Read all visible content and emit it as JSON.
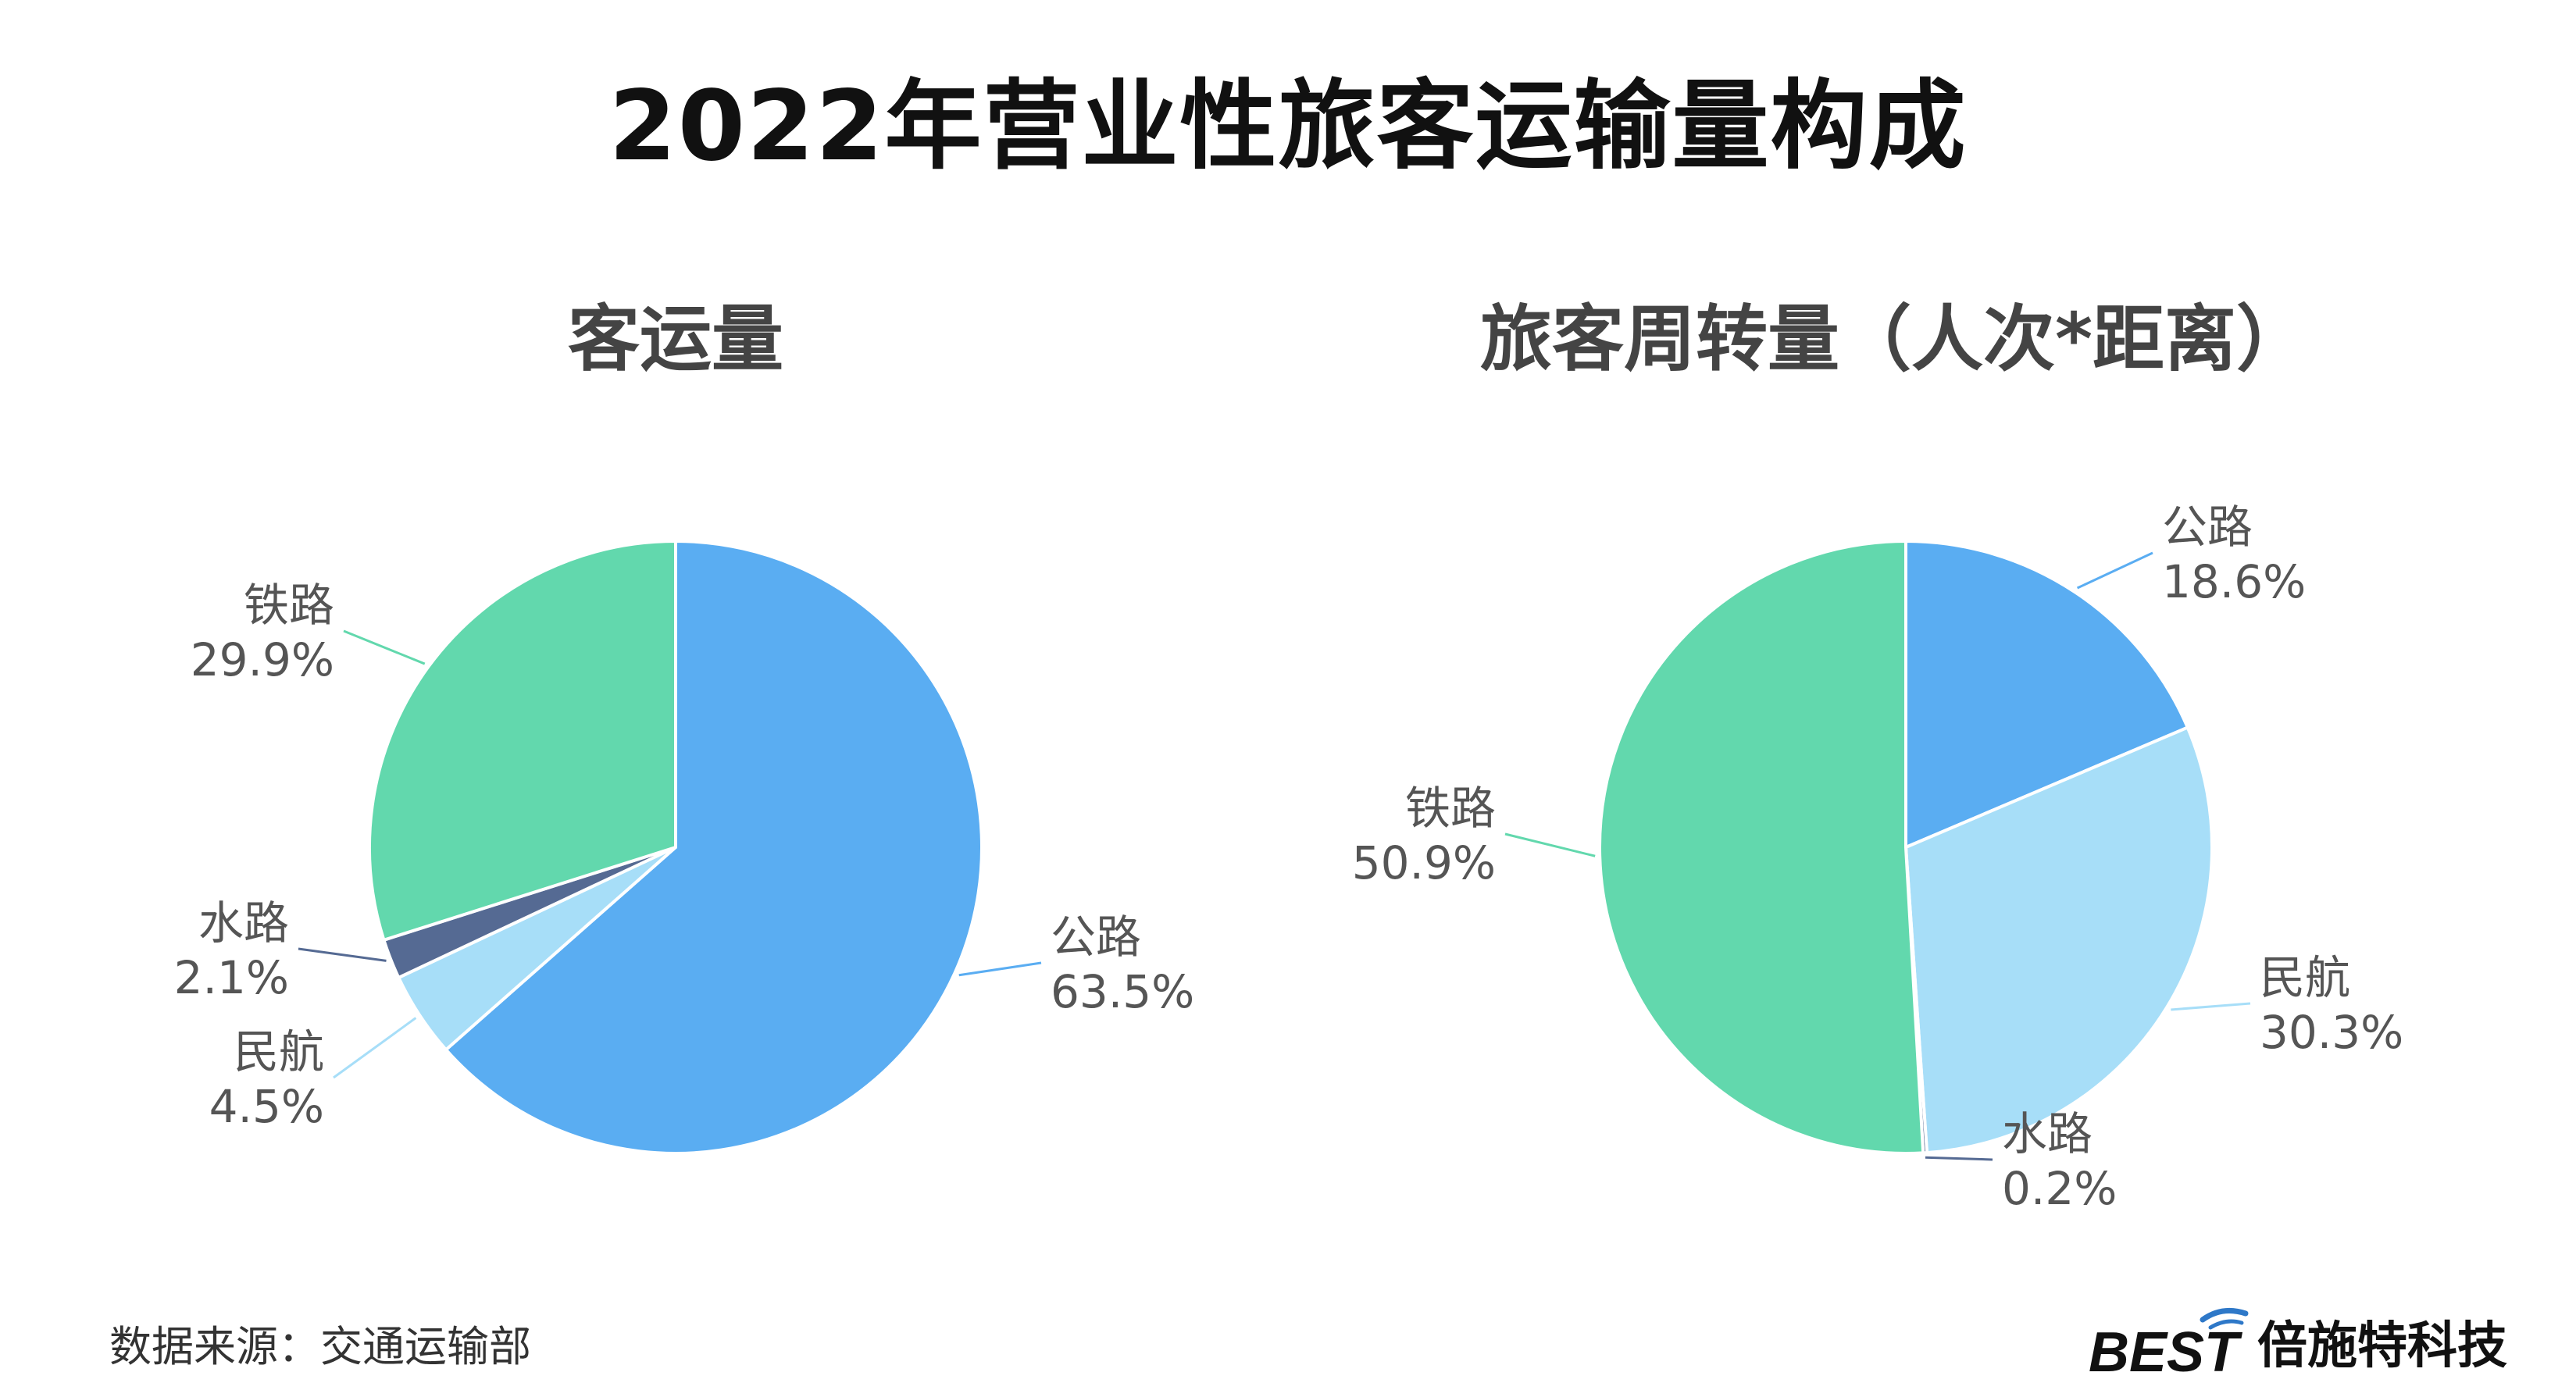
{
  "title": "2022年营业性旅客运输量构成",
  "source": "数据来源：交通运输部",
  "brand": {
    "logo_text": "BEST",
    "name": "倍施特科技"
  },
  "colors": {
    "公路": "#5AADF2",
    "铁路": "#62D8AD",
    "民航": "#A7DEF8",
    "水路": "#556A93"
  },
  "chart_data": [
    {
      "type": "pie",
      "title": "客运量",
      "slices": [
        {
          "label": "公路",
          "value": 63.5,
          "display": "63.5%"
        },
        {
          "label": "民航",
          "value": 4.5,
          "display": "4.5%"
        },
        {
          "label": "水路",
          "value": 2.1,
          "display": "2.1%"
        },
        {
          "label": "铁路",
          "value": 29.9,
          "display": "29.9%"
        }
      ]
    },
    {
      "type": "pie",
      "title": "旅客周转量（人次*距离）",
      "slices": [
        {
          "label": "公路",
          "value": 18.6,
          "display": "18.6%"
        },
        {
          "label": "民航",
          "value": 30.3,
          "display": "30.3%"
        },
        {
          "label": "水路",
          "value": 0.2,
          "display": "0.2%"
        },
        {
          "label": "铁路",
          "value": 50.9,
          "display": "50.9%"
        }
      ]
    }
  ]
}
